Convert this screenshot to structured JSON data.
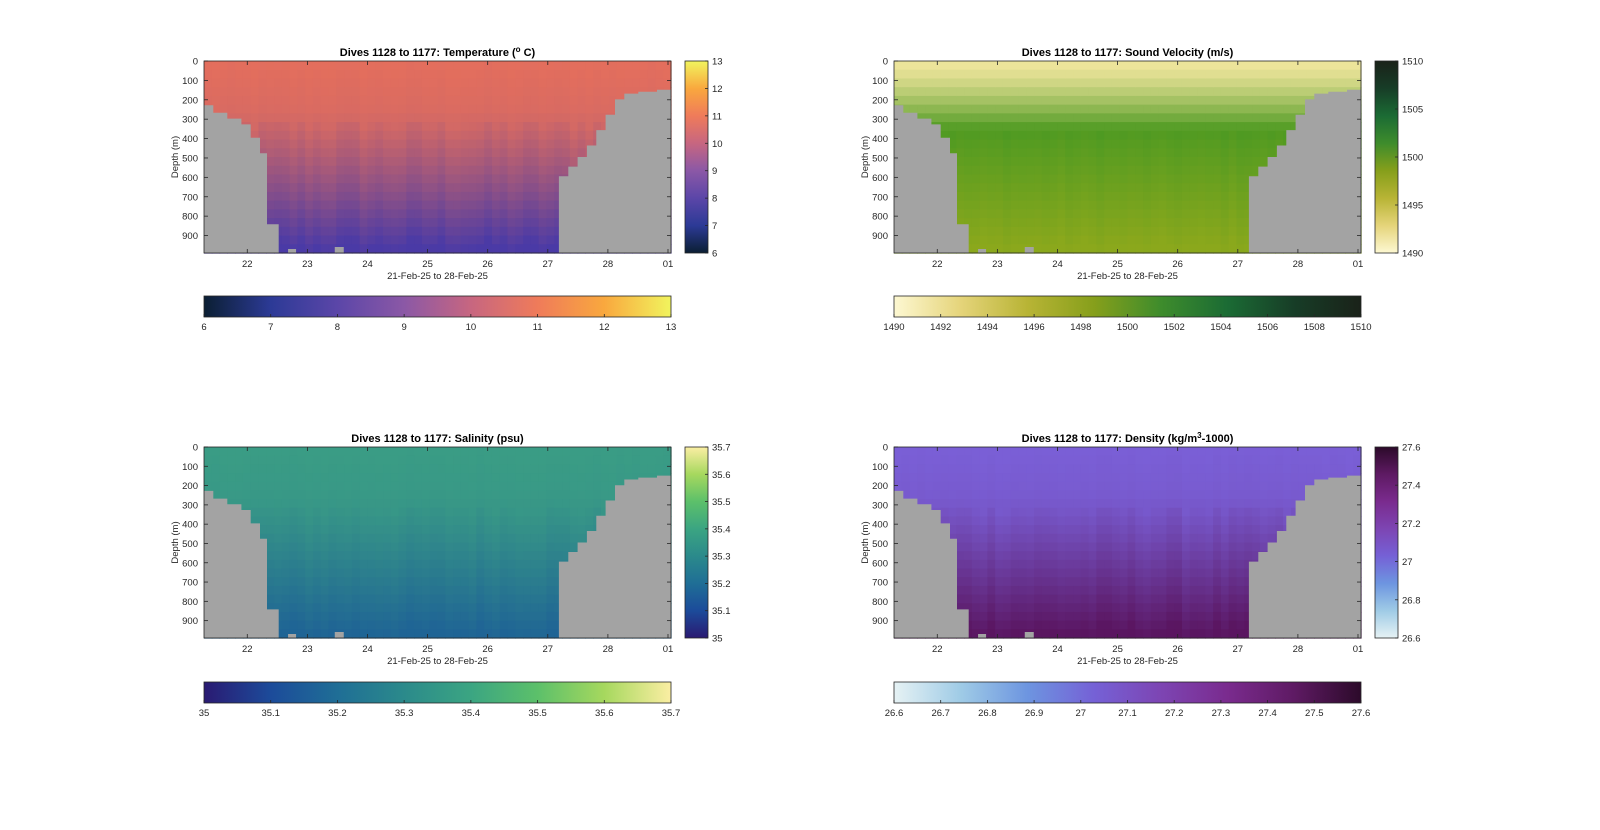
{
  "chart_data": [
    {
      "type": "heatmap",
      "title_pre": "Dives 1128 to 1177: Temperature (",
      "title_sup": "o",
      "title_post": " C)",
      "ylabel": "Depth (m)",
      "xlabel": "21-Feb-25 to 28-Feb-25",
      "x_tick_labels": [
        "22",
        "23",
        "24",
        "25",
        "26",
        "27",
        "28",
        "01"
      ],
      "y_tick_labels": [
        "0",
        "100",
        "200",
        "300",
        "400",
        "500",
        "600",
        "700",
        "800",
        "900"
      ],
      "ylim": [
        0,
        990
      ],
      "colorbar_ticks": [
        "6",
        "7",
        "8",
        "9",
        "10",
        "11",
        "12",
        "13"
      ],
      "hcolorbar_ticks": [
        "6",
        "7",
        "8",
        "9",
        "10",
        "11",
        "12",
        "13"
      ],
      "cmap": [
        "#0b1f33",
        "#2c3a96",
        "#5b46a8",
        "#8b58a6",
        "#c76680",
        "#ef7b5a",
        "#f9a83e",
        "#f1f45e"
      ],
      "surface_color": "#e36e5d",
      "deep_color": "#4a3aa6",
      "land_color": "#a3a3a3"
    },
    {
      "type": "heatmap",
      "title_pre": "Dives 1128 to 1177: Sound Velocity (m/s)",
      "title_sup": "",
      "title_post": "",
      "ylabel": "Depth (m)",
      "xlabel": "21-Feb-25 to 28-Feb-25",
      "x_tick_labels": [
        "22",
        "23",
        "24",
        "25",
        "26",
        "27",
        "28",
        "01"
      ],
      "y_tick_labels": [
        "0",
        "100",
        "200",
        "300",
        "400",
        "500",
        "600",
        "700",
        "800",
        "900"
      ],
      "ylim": [
        0,
        990
      ],
      "colorbar_ticks": [
        "1490",
        "1495",
        "1500",
        "1505",
        "1510"
      ],
      "hcolorbar_ticks": [
        "1490",
        "1492",
        "1494",
        "1496",
        "1498",
        "1500",
        "1502",
        "1504",
        "1506",
        "1508",
        "1510"
      ],
      "cmap": [
        "#fdf8d2",
        "#e5d47a",
        "#b8b435",
        "#869f1b",
        "#3e8c2c",
        "#1b6b34",
        "#173d27",
        "#1a2219"
      ],
      "surface_color": "#ece49a",
      "mid_color": "#4f9a22",
      "deep_color": "#8ba81c",
      "land_color": "#a3a3a3"
    },
    {
      "type": "heatmap",
      "title_pre": "Dives 1128 to 1177: Salinity (psu)",
      "title_sup": "",
      "title_post": "",
      "ylabel": "Depth (m)",
      "xlabel": "21-Feb-25 to 28-Feb-25",
      "x_tick_labels": [
        "22",
        "23",
        "24",
        "25",
        "26",
        "27",
        "28",
        "01"
      ],
      "y_tick_labels": [
        "0",
        "100",
        "200",
        "300",
        "400",
        "500",
        "600",
        "700",
        "800",
        "900"
      ],
      "ylim": [
        0,
        990
      ],
      "colorbar_ticks": [
        "35",
        "35.1",
        "35.2",
        "35.3",
        "35.4",
        "35.5",
        "35.6",
        "35.7"
      ],
      "hcolorbar_ticks": [
        "35",
        "35.1",
        "35.2",
        "35.3",
        "35.4",
        "35.5",
        "35.6",
        "35.7"
      ],
      "cmap": [
        "#2a1a72",
        "#1c4b9a",
        "#1f6e96",
        "#2b8a8b",
        "#3ba582",
        "#5cc06a",
        "#a6d85e",
        "#fbeea3"
      ],
      "surface_color": "#3a9c85",
      "deep_color": "#1f6495",
      "land_color": "#a3a3a3"
    },
    {
      "type": "heatmap",
      "title_pre": "Dives 1128 to 1177: Density (kg/m",
      "title_sup": "3",
      "title_post": "-1000)",
      "ylabel": "Depth (m)",
      "xlabel": "21-Feb-25 to 28-Feb-25",
      "x_tick_labels": [
        "22",
        "23",
        "24",
        "25",
        "26",
        "27",
        "28",
        "01"
      ],
      "y_tick_labels": [
        "0",
        "100",
        "200",
        "300",
        "400",
        "500",
        "600",
        "700",
        "800",
        "900"
      ],
      "ylim": [
        0,
        990
      ],
      "colorbar_ticks": [
        "26.6",
        "26.8",
        "27",
        "27.2",
        "27.4",
        "27.6"
      ],
      "hcolorbar_ticks": [
        "26.6",
        "26.7",
        "26.8",
        "26.9",
        "27",
        "27.1",
        "27.2",
        "27.3",
        "27.4",
        "27.5",
        "27.6"
      ],
      "cmap": [
        "#e6f2f4",
        "#9fcbe6",
        "#6d95e0",
        "#7561d6",
        "#7d45b3",
        "#7a2b8e",
        "#5e1a63",
        "#2c0a2a"
      ],
      "surface_color": "#7a5fd6",
      "deep_color": "#5a1560",
      "land_color": "#a3a3a3"
    }
  ]
}
